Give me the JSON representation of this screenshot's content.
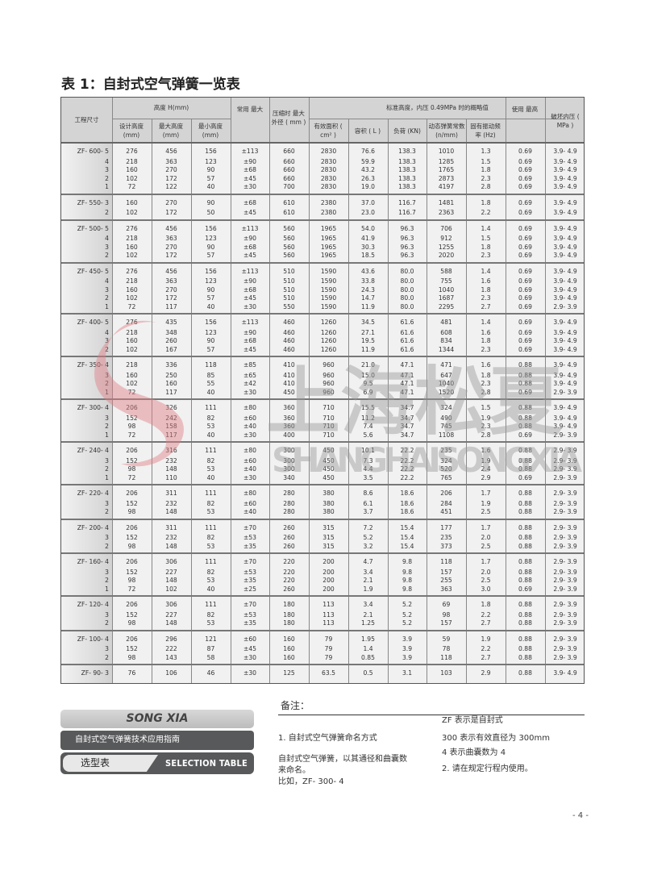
{
  "title": "表 1：自封式空气弹簧一览表",
  "header": {
    "model": "工程尺寸",
    "height_group": "高度 H(mm)",
    "design_h": "设计高度 (mm)",
    "max_h": "最大高度 (mm)",
    "min_h": "最小高度 (mm)",
    "stroke": "常用 最大",
    "max_od": "压缩时 最大外径 ( mm )",
    "std_group": "标准高度，内压 0.49MPa 时的概略值",
    "area": "有效面积 ( cm² )",
    "volume": "容积 ( L )",
    "load": "负荷 (KN)",
    "spring": "动态弹簧常数 (n/mm)",
    "freq": "固有振动频率 (Hz)",
    "max_use": "使用 最高",
    "burst": "破坏内压 ( MPa )"
  },
  "groups": [
    {
      "rows": [
        [
          "ZF- 600- 5",
          "276",
          "456",
          "156",
          "±113",
          "660",
          "2830",
          "76.6",
          "138.3",
          "1010",
          "1.3",
          "0.69",
          "3.9- 4.9"
        ],
        [
          "4",
          "218",
          "363",
          "123",
          "±90",
          "660",
          "2830",
          "59.9",
          "138.3",
          "1285",
          "1.5",
          "0.69",
          "3.9- 4.9"
        ],
        [
          "3",
          "160",
          "270",
          "90",
          "±68",
          "660",
          "2830",
          "43.2",
          "138.3",
          "1765",
          "1.8",
          "0.69",
          "3.9- 4.9"
        ],
        [
          "2",
          "102",
          "172",
          "57",
          "±45",
          "660",
          "2830",
          "26.3",
          "138.3",
          "2873",
          "2.3",
          "0.69",
          "3.9- 4.9"
        ],
        [
          "1",
          "72",
          "122",
          "40",
          "±30",
          "700",
          "2830",
          "19.0",
          "138.3",
          "4197",
          "2.8",
          "0.69",
          "3.9- 4.9"
        ]
      ]
    },
    {
      "rows": [
        [
          "ZF- 550- 3",
          "160",
          "270",
          "90",
          "±68",
          "610",
          "2380",
          "37.0",
          "116.7",
          "1481",
          "1.8",
          "0.69",
          "3.9- 4.9"
        ],
        [
          "2",
          "102",
          "172",
          "50",
          "±45",
          "610",
          "2380",
          "23.0",
          "116.7",
          "2363",
          "2.2",
          "0.69",
          "3.9- 4.9"
        ]
      ]
    },
    {
      "rows": [
        [
          "ZF- 500- 5",
          "276",
          "456",
          "156",
          "±113",
          "560",
          "1965",
          "54.0",
          "96.3",
          "706",
          "1.4",
          "0.69",
          "3.9- 4.9"
        ],
        [
          "4",
          "218",
          "363",
          "123",
          "±90",
          "560",
          "1965",
          "41.9",
          "96.3",
          "912",
          "1.5",
          "0.69",
          "3.9- 4.9"
        ],
        [
          "3",
          "160",
          "270",
          "90",
          "±68",
          "560",
          "1965",
          "30.3",
          "96.3",
          "1255",
          "1.8",
          "0.69",
          "3.9- 4.9"
        ],
        [
          "2",
          "102",
          "172",
          "57",
          "±45",
          "560",
          "1965",
          "18.5",
          "96.3",
          "2020",
          "2.3",
          "0.69",
          "3.9- 4.9"
        ]
      ]
    },
    {
      "rows": [
        [
          "ZF- 450- 5",
          "276",
          "456",
          "156",
          "±113",
          "510",
          "1590",
          "43.6",
          "80.0",
          "588",
          "1.4",
          "0.69",
          "3.9- 4.9"
        ],
        [
          "4",
          "218",
          "363",
          "123",
          "±90",
          "510",
          "1590",
          "33.8",
          "80.0",
          "755",
          "1.6",
          "0.69",
          "3.9- 4.9"
        ],
        [
          "3",
          "160",
          "270",
          "90",
          "±68",
          "510",
          "1590",
          "24.3",
          "80.0",
          "1040",
          "1.8",
          "0.69",
          "3.9- 4.9"
        ],
        [
          "2",
          "102",
          "172",
          "57",
          "±45",
          "510",
          "1590",
          "14.7",
          "80.0",
          "1687",
          "2.3",
          "0.69",
          "3.9- 4.9"
        ],
        [
          "1",
          "72",
          "117",
          "40",
          "±30",
          "550",
          "1590",
          "11.9",
          "80.0",
          "2295",
          "2.7",
          "0.69",
          "2.9- 3.9"
        ]
      ]
    },
    {
      "rows": [
        [
          "ZF- 400- 5",
          "276",
          "435",
          "156",
          "±113",
          "460",
          "1260",
          "34.5",
          "61.6",
          "481",
          "1.4",
          "0.69",
          "3.9- 4.9"
        ],
        [
          "4",
          "218",
          "348",
          "123",
          "±90",
          "460",
          "1260",
          "27.1",
          "61.6",
          "608",
          "1.6",
          "0.69",
          "3.9- 4.9"
        ],
        [
          "3",
          "160",
          "260",
          "90",
          "±68",
          "460",
          "1260",
          "19.5",
          "61.6",
          "834",
          "1.8",
          "0.69",
          "3.9- 4.9"
        ],
        [
          "2",
          "102",
          "167",
          "57",
          "±45",
          "460",
          "1260",
          "11.9",
          "61.6",
          "1344",
          "2.3",
          "0.69",
          "3.9- 4.9"
        ]
      ]
    },
    {
      "rows": [
        [
          "ZF- 350- 4",
          "218",
          "336",
          "118",
          "±85",
          "410",
          "960",
          "21.0",
          "47.1",
          "471",
          "1.6",
          "0.88",
          "3.9- 4.9"
        ],
        [
          "3",
          "160",
          "250",
          "85",
          "±65",
          "410",
          "960",
          "15.0",
          "47.1",
          "647",
          "1.8",
          "0.88",
          "3.9- 4.9"
        ],
        [
          "2",
          "102",
          "160",
          "55",
          "±42",
          "410",
          "960",
          "9.5",
          "47.1",
          "1040",
          "2.3",
          "0.88",
          "3.9- 4.9"
        ],
        [
          "1",
          "72",
          "117",
          "40",
          "±30",
          "450",
          "960",
          "6.9",
          "47.1",
          "1520",
          "2.8",
          "0.69",
          "2.9- 3.9"
        ]
      ]
    },
    {
      "rows": [
        [
          "ZF- 300- 4",
          "206",
          "326",
          "111",
          "±80",
          "360",
          "710",
          "15.5",
          "34.7",
          "324",
          "1.5",
          "0.88",
          "3.9- 4.9"
        ],
        [
          "3",
          "152",
          "242",
          "82",
          "±60",
          "360",
          "710",
          "11.2",
          "34.7",
          "490",
          "1.9",
          "0.88",
          "3.9- 4.9"
        ],
        [
          "2",
          "98",
          "158",
          "53",
          "±40",
          "360",
          "710",
          "7.4",
          "34.7",
          "745",
          "2.3",
          "0.88",
          "3.9- 4.9"
        ],
        [
          "1",
          "72",
          "117",
          "40",
          "±30",
          "400",
          "710",
          "5.6",
          "34.7",
          "1108",
          "2.8",
          "0.69",
          "2.9- 3.9"
        ]
      ]
    },
    {
      "rows": [
        [
          "ZF- 240- 4",
          "206",
          "316",
          "111",
          "±80",
          "300",
          "450",
          "10.1",
          "22.2",
          "235",
          "1.6",
          "0.88",
          "2.9- 3.9"
        ],
        [
          "3",
          "152",
          "232",
          "82",
          "±60",
          "300",
          "450",
          "7.3",
          "22.2",
          "324",
          "1.9",
          "0.88",
          "2.9- 3.9"
        ],
        [
          "2",
          "98",
          "148",
          "53",
          "±40",
          "300",
          "450",
          "4.4",
          "22.2",
          "520",
          "2.4",
          "0.88",
          "2.9- 3.9"
        ],
        [
          "1",
          "72",
          "110",
          "40",
          "±30",
          "340",
          "450",
          "3.5",
          "22.2",
          "765",
          "2.9",
          "0.69",
          "2.9- 3.9"
        ]
      ]
    },
    {
      "rows": [
        [
          "ZF- 220- 4",
          "206",
          "311",
          "111",
          "±80",
          "280",
          "380",
          "8.6",
          "18.6",
          "206",
          "1.7",
          "0.88",
          "2.9- 3.9"
        ],
        [
          "3",
          "152",
          "232",
          "82",
          "±60",
          "280",
          "380",
          "6.1",
          "18.6",
          "284",
          "1.9",
          "0.88",
          "2.9- 3.9"
        ],
        [
          "2",
          "98",
          "148",
          "53",
          "±40",
          "280",
          "380",
          "3.7",
          "18.6",
          "451",
          "2.5",
          "0.88",
          "2.9- 3.9"
        ]
      ]
    },
    {
      "rows": [
        [
          "ZF- 200- 4",
          "206",
          "311",
          "111",
          "±70",
          "260",
          "315",
          "7.2",
          "15.4",
          "177",
          "1.7",
          "0.88",
          "2.9- 3.9"
        ],
        [
          "3",
          "152",
          "232",
          "82",
          "±53",
          "260",
          "315",
          "5.2",
          "15.4",
          "235",
          "2.0",
          "0.88",
          "2.9- 3.9"
        ],
        [
          "2",
          "98",
          "148",
          "53",
          "±35",
          "260",
          "315",
          "3.2",
          "15.4",
          "373",
          "2.5",
          "0.88",
          "2.9- 3.9"
        ]
      ]
    },
    {
      "rows": [
        [
          "ZF- 160- 4",
          "206",
          "306",
          "111",
          "±70",
          "220",
          "200",
          "4.7",
          "9.8",
          "118",
          "1.7",
          "0.88",
          "2.9- 3.9"
        ],
        [
          "3",
          "152",
          "227",
          "82",
          "±53",
          "220",
          "200",
          "3.4",
          "9.8",
          "157",
          "2.0",
          "0.88",
          "2.9- 3.9"
        ],
        [
          "2",
          "98",
          "148",
          "53",
          "±35",
          "220",
          "200",
          "2.1",
          "9.8",
          "255",
          "2.5",
          "0.88",
          "2.9- 3.9"
        ],
        [
          "1",
          "72",
          "102",
          "40",
          "±25",
          "260",
          "200",
          "1.9",
          "9.8",
          "363",
          "3.0",
          "0.69",
          "2.9- 3.9"
        ]
      ]
    },
    {
      "rows": [
        [
          "ZF- 120- 4",
          "206",
          "306",
          "111",
          "±70",
          "180",
          "113",
          "3.4",
          "5.2",
          "69",
          "1.8",
          "0.88",
          "2.9- 3.9"
        ],
        [
          "3",
          "152",
          "227",
          "82",
          "±53",
          "180",
          "113",
          "2.1",
          "5.2",
          "98",
          "2.2",
          "0.88",
          "2.9- 3.9"
        ],
        [
          "2",
          "98",
          "148",
          "53",
          "±35",
          "180",
          "113",
          "1.25",
          "5.2",
          "157",
          "2.7",
          "0.88",
          "2.9- 3.9"
        ]
      ]
    },
    {
      "rows": [
        [
          "ZF- 100- 4",
          "206",
          "296",
          "121",
          "±60",
          "160",
          "79",
          "1.95",
          "3.9",
          "59",
          "1.9",
          "0.88",
          "2.9- 3.9"
        ],
        [
          "3",
          "152",
          "222",
          "87",
          "±45",
          "160",
          "79",
          "1.4",
          "3.9",
          "78",
          "2.2",
          "0.88",
          "2.9- 3.9"
        ],
        [
          "2",
          "98",
          "143",
          "58",
          "±30",
          "160",
          "79",
          "0.85",
          "3.9",
          "118",
          "2.7",
          "0.88",
          "2.9- 3.9"
        ]
      ]
    },
    {
      "rows": [
        [
          "ZF- 90- 3",
          "76",
          "106",
          "46",
          "±30",
          "125",
          "63.5",
          "0.5",
          "3.1",
          "103",
          "2.9",
          "0.88",
          "3.9- 4.9"
        ]
      ]
    }
  ],
  "watermark": {
    "cn": "上海松夏",
    "en": "SHANGHAISONGXIA",
    "color": "#e07f86"
  },
  "brand": {
    "name": "SONG XIA",
    "guide": "自封式空气弹簧技术应用指南",
    "section_cn": "选型表",
    "section_en": "SELECTION TABLE"
  },
  "notes": {
    "heading": "备注：",
    "left": [
      "1. 自封式空气弹簧命名方式",
      "自封式空气弹簧，以其通径和曲囊数来命名。",
      "比如，ZF- 300- 4"
    ],
    "right": [
      "ZF 表示是自封式",
      "300 表示有效直径为 300mm",
      "4 表示曲囊数为 4",
      "2. 请在规定行程内使用。"
    ]
  },
  "page_number": "- 4 -"
}
